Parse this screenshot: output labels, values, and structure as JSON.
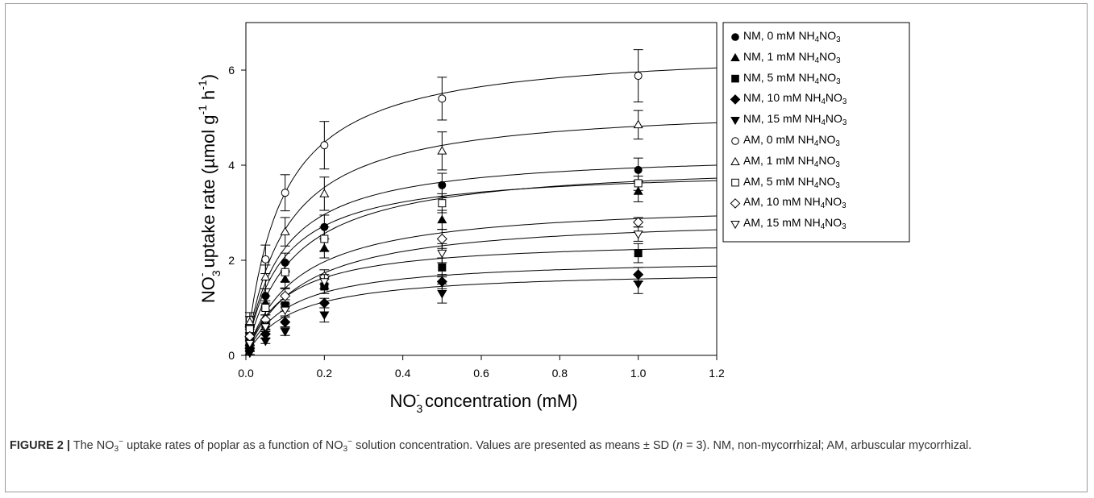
{
  "chart_data": {
    "type": "scatter",
    "xlabel_main": "NO",
    "xlabel_sub": "3",
    "xlabel_sup": "-",
    "xlabel_rest": " concentration (mM)",
    "ylabel_main": "NO",
    "ylabel_sub": "3",
    "ylabel_sup": "-",
    "ylabel_rest_1": " uptake rate (µmol g",
    "ylabel_sup2": "-1",
    "ylabel_rest_2": " h",
    "ylabel_sup3": "-1",
    "ylabel_rest_3": ")",
    "xlim": [
      0.0,
      1.2
    ],
    "ylim": [
      0,
      7
    ],
    "xticks": [
      "0.0",
      "0.2",
      "0.4",
      "0.6",
      "0.8",
      "1.0",
      "1.2"
    ],
    "yticks": [
      "0",
      "2",
      "4",
      "6"
    ],
    "x": [
      0.01,
      0.05,
      0.1,
      0.2,
      0.5,
      1.0
    ],
    "legend_position": "right",
    "series": [
      {
        "name": "NM, 0 mM NH4NO3",
        "marker": "circle",
        "fill": "filled",
        "values": [
          0.5,
          1.25,
          1.95,
          2.7,
          3.58,
          3.9
        ],
        "err": [
          0.12,
          0.15,
          0.2,
          0.25,
          0.25,
          0.25
        ],
        "vmax": 4.3,
        "km": 0.09
      },
      {
        "name": "NM, 1 mM NH4NO3",
        "marker": "triangle-up",
        "fill": "filled",
        "values": [
          0.45,
          1.1,
          1.6,
          2.25,
          2.85,
          3.45
        ],
        "err": [
          0.1,
          0.15,
          0.18,
          0.2,
          0.2,
          0.22
        ],
        "vmax": 3.95,
        "km": 0.09
      },
      {
        "name": "NM, 5 mM NH4NO3",
        "marker": "square",
        "fill": "filled",
        "values": [
          0.3,
          0.65,
          1.05,
          1.45,
          1.85,
          2.15
        ],
        "err": [
          0.08,
          0.1,
          0.12,
          0.15,
          0.2,
          0.2
        ],
        "vmax": 2.45,
        "km": 0.1
      },
      {
        "name": "NM, 10 mM NH4NO3",
        "marker": "diamond",
        "fill": "filled",
        "values": [
          0.15,
          0.45,
          0.7,
          1.1,
          1.55,
          1.7
        ],
        "err": [
          0.05,
          0.08,
          0.1,
          0.1,
          0.15,
          0.15
        ],
        "vmax": 2.05,
        "km": 0.11
      },
      {
        "name": "NM, 15 mM NH4NO3",
        "marker": "triangle-down",
        "fill": "filled",
        "values": [
          0.05,
          0.3,
          0.5,
          0.85,
          1.3,
          1.5
        ],
        "err": [
          0.03,
          0.05,
          0.08,
          0.15,
          0.2,
          0.2
        ],
        "vmax": 1.8,
        "km": 0.12
      },
      {
        "name": "AM, 0 mM NH4NO3",
        "marker": "circle",
        "fill": "open",
        "values": [
          0.75,
          2.02,
          3.42,
          4.42,
          5.4,
          5.88
        ],
        "err": [
          0.15,
          0.3,
          0.38,
          0.5,
          0.45,
          0.55
        ],
        "vmax": 6.5,
        "km": 0.09
      },
      {
        "name": "AM, 1 mM NH4NO3",
        "marker": "triangle-up",
        "fill": "open",
        "values": [
          0.7,
          1.65,
          2.6,
          3.4,
          4.3,
          4.85
        ],
        "err": [
          0.12,
          0.25,
          0.3,
          0.35,
          0.4,
          0.3
        ],
        "vmax": 5.3,
        "km": 0.1
      },
      {
        "name": "AM, 5 mM NH4NO3",
        "marker": "square",
        "fill": "open",
        "values": [
          0.55,
          1.0,
          1.75,
          2.45,
          3.2,
          3.62
        ],
        "err": [
          0.1,
          0.15,
          0.2,
          0.25,
          0.2,
          0.15
        ],
        "vmax": 4.1,
        "km": 0.12
      },
      {
        "name": "AM, 10 mM NH4NO3",
        "marker": "diamond",
        "fill": "open",
        "values": [
          0.4,
          0.75,
          1.25,
          1.65,
          2.45,
          2.8
        ],
        "err": [
          0.08,
          0.1,
          0.15,
          0.15,
          0.2,
          0.1
        ],
        "vmax": 3.25,
        "km": 0.13
      },
      {
        "name": "AM, 15 mM NH4NO3",
        "marker": "triangle-down",
        "fill": "open",
        "values": [
          0.25,
          0.6,
          0.95,
          1.55,
          2.15,
          2.55
        ],
        "err": [
          0.05,
          0.1,
          0.12,
          0.15,
          0.2,
          0.15
        ],
        "vmax": 2.95,
        "km": 0.14
      }
    ]
  },
  "legend_items": [
    {
      "prefix": "NM, 0 mM NH",
      "sub1": "4",
      "mid": "NO",
      "sub2": "3"
    },
    {
      "prefix": "NM, 1 mM NH",
      "sub1": "4",
      "mid": "NO",
      "sub2": "3"
    },
    {
      "prefix": "NM, 5 mM NH",
      "sub1": "4",
      "mid": "NO",
      "sub2": "3"
    },
    {
      "prefix": "NM, 10 mM NH",
      "sub1": "4",
      "mid": "NO",
      "sub2": "3"
    },
    {
      "prefix": "NM, 15 mM NH",
      "sub1": "4",
      "mid": "NO",
      "sub2": "3"
    },
    {
      "prefix": "AM, 0 mM NH",
      "sub1": "4",
      "mid": "NO",
      "sub2": "3"
    },
    {
      "prefix": "AM, 1 mM NH",
      "sub1": "4",
      "mid": "NO",
      "sub2": "3"
    },
    {
      "prefix": "AM, 5 mM NH",
      "sub1": "4",
      "mid": "NO",
      "sub2": "3"
    },
    {
      "prefix": "AM, 10 mM NH",
      "sub1": "4",
      "mid": "NO",
      "sub2": "3"
    },
    {
      "prefix": "AM, 15 mM NH",
      "sub1": "4",
      "mid": "NO",
      "sub2": "3"
    }
  ],
  "caption": {
    "label": "FIGURE 2 |",
    "t1": " The NO",
    "s1": "3",
    "p1": "−",
    "t2": " uptake rates of poplar as a function of NO",
    "s2": "3",
    "p2": "−",
    "t3": " solution concentration. Values are presented as means ± SD (",
    "n": "n",
    "t4": " = 3). NM, non-mycorrhizal; AM, arbuscular mycorrhizal."
  }
}
